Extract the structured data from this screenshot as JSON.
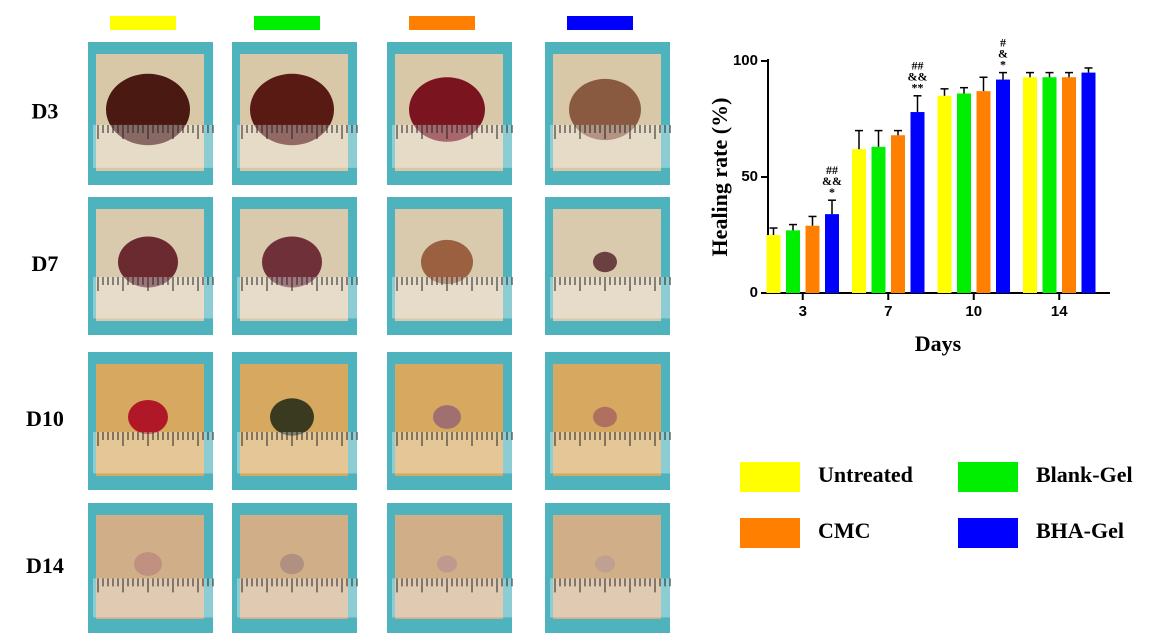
{
  "panel_labels": [
    "D3",
    "D7",
    "D10",
    "D14"
  ],
  "chart_data": {
    "type": "bar",
    "ylabel": "Healing rate (%)",
    "xlabel": "Days",
    "categories": [
      "3",
      "7",
      "10",
      "14"
    ],
    "ylim": [
      0,
      100
    ],
    "yticks": [
      0,
      50,
      100
    ],
    "series": [
      {
        "name": "Untreated",
        "color": "#ffff00",
        "values": [
          25,
          62,
          85,
          93
        ],
        "errors": [
          3,
          8,
          3,
          2
        ]
      },
      {
        "name": "Blank-Gel",
        "color": "#00ee00",
        "values": [
          27,
          63,
          86,
          93
        ],
        "errors": [
          2.5,
          7,
          2.5,
          2
        ]
      },
      {
        "name": "CMC",
        "color": "#ff8000",
        "values": [
          29,
          68,
          87,
          93
        ],
        "errors": [
          4,
          2,
          6,
          2
        ]
      },
      {
        "name": "BHA-Gel",
        "color": "#0000ff",
        "values": [
          34,
          78,
          92,
          95
        ],
        "errors": [
          6,
          7,
          3,
          2
        ]
      }
    ],
    "significance": [
      [
        "##",
        "&&",
        "*"
      ],
      [
        "##",
        "&&",
        "**"
      ],
      [
        "#",
        "&",
        "*"
      ],
      null
    ]
  }
}
